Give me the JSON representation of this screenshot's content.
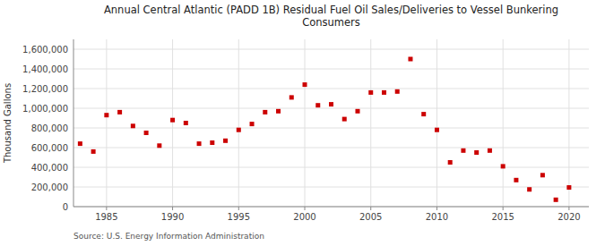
{
  "chart_data": {
    "type": "scatter",
    "title": "Annual Central Atlantic (PADD 1B) Residual Fuel Oil Sales/Deliveries to Vessel Bunkering\nConsumers",
    "y_label": "Thousand Gallons",
    "annotations": [
      "Source: U.S. Energy Information Administration"
    ],
    "color": "#cc0000",
    "marker": "square",
    "grid": true,
    "x": [
      1983,
      1984,
      1985,
      1986,
      1987,
      1988,
      1989,
      1990,
      1991,
      1992,
      1993,
      1994,
      1995,
      1996,
      1997,
      1998,
      1999,
      2000,
      2001,
      2002,
      2003,
      2004,
      2005,
      2006,
      2007,
      2008,
      2009,
      2010,
      2011,
      2012,
      2013,
      2014,
      2015,
      2016,
      2017,
      2018,
      2019,
      2020
    ],
    "values": [
      640000,
      560000,
      930000,
      960000,
      820000,
      750000,
      620000,
      880000,
      850000,
      640000,
      650000,
      670000,
      780000,
      840000,
      960000,
      970000,
      1110000,
      1240000,
      1030000,
      1040000,
      890000,
      970000,
      1160000,
      1160000,
      1170000,
      1500000,
      940000,
      780000,
      450000,
      570000,
      550000,
      570000,
      410000,
      270000,
      175000,
      320000,
      70000,
      195000
    ],
    "xlim": [
      1982.5,
      2021.5
    ],
    "xticks": [
      1985,
      1990,
      1995,
      2000,
      2005,
      2010,
      2015,
      2020
    ],
    "ylim": [
      0,
      1700000
    ],
    "yticks": [
      0,
      {
        "value": 200000,
        "label": "200,000"
      },
      {
        "value": 400000,
        "label": "400,000"
      },
      {
        "value": 600000,
        "label": "600,000"
      },
      {
        "value": 800000,
        "label": "800,000"
      },
      {
        "value": 1000000,
        "label": "1,000,000"
      },
      {
        "value": 1200000,
        "label": "1,200,000"
      },
      {
        "value": 1400000,
        "label": "1,400,000"
      },
      {
        "value": 1600000,
        "label": "1,600,000"
      }
    ]
  }
}
